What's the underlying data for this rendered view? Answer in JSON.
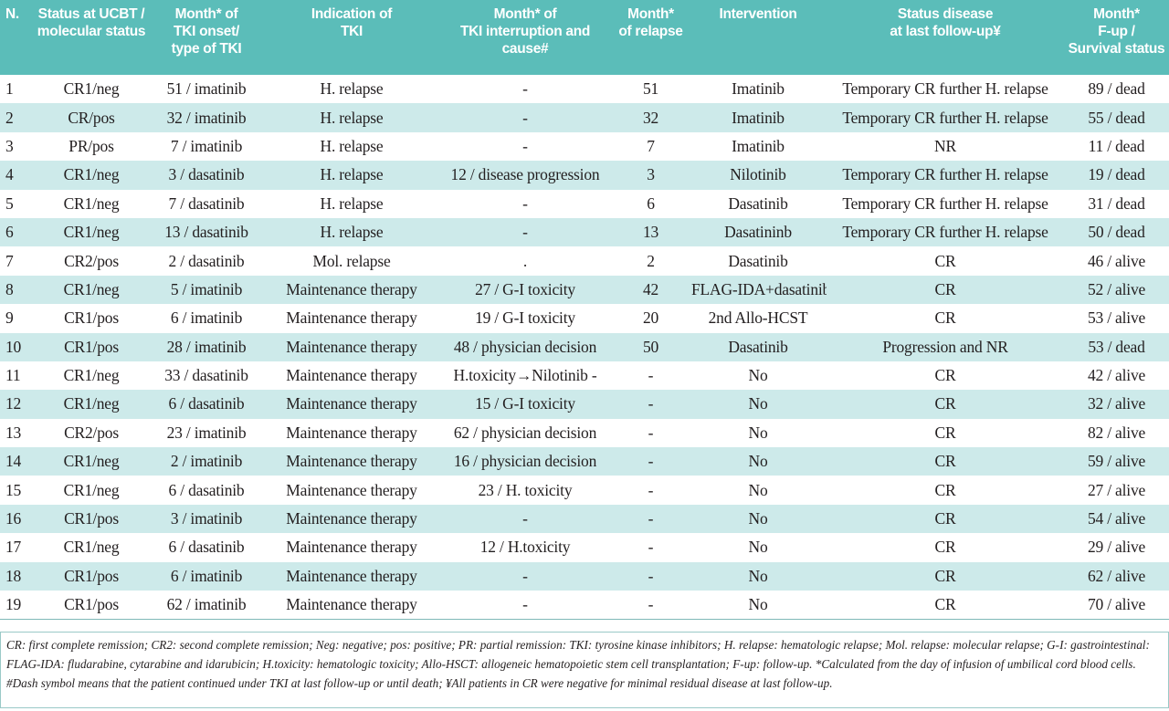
{
  "table": {
    "header": [
      [
        "N."
      ],
      [
        "Status at UCBT /",
        "molecular status"
      ],
      [
        "Month* of",
        "TKI onset/",
        "type of TKI"
      ],
      [
        "Indication of",
        "TKI"
      ],
      [
        "Month* of",
        "TKI interruption and",
        "cause#"
      ],
      [
        "Month*",
        "of relapse"
      ],
      [
        "Intervention"
      ],
      [
        "Status disease",
        "at last follow-up¥"
      ],
      [
        "Month*",
        "F-up /",
        "Survival status"
      ]
    ],
    "rows": [
      [
        "1",
        "CR1/neg",
        "51 / imatinib",
        "H. relapse",
        "-",
        "51",
        "Imatinib",
        "Temporary CR further H. relapse",
        "89 / dead"
      ],
      [
        "2",
        "CR/pos",
        "32 / imatinib",
        "H. relapse",
        "-",
        "32",
        "Imatinib",
        "Temporary CR further H. relapse",
        "55 / dead"
      ],
      [
        "3",
        "PR/pos",
        "7 / imatinib",
        "H. relapse",
        "-",
        "7",
        "Imatinib",
        "NR",
        "11 / dead"
      ],
      [
        "4",
        "CR1/neg",
        "3 / dasatinib",
        "H. relapse",
        "12 / disease progression",
        "3",
        "Nilotinib",
        "Temporary CR further H. relapse",
        "19 / dead"
      ],
      [
        "5",
        "CR1/neg",
        "7 / dasatinib",
        "H. relapse",
        "-",
        "6",
        "Dasatinib",
        "Temporary CR further H. relapse",
        "31 / dead"
      ],
      [
        "6",
        "CR1/neg",
        "13 / dasatinib",
        "H. relapse",
        "-",
        "13",
        "Dasatininb",
        "Temporary CR further H. relapse",
        "50 / dead"
      ],
      [
        "7",
        "CR2/pos",
        "2 / dasatinib",
        "Mol. relapse",
        ".",
        "2",
        "Dasatinib",
        "CR",
        "46 / alive"
      ],
      [
        "8",
        "CR1/neg",
        "5 / imatinib",
        "Maintenance therapy",
        "27 / G-I toxicity",
        "42",
        "FLAG-IDA+dasatinib",
        "CR",
        "52 / alive"
      ],
      [
        "9",
        "CR1/pos",
        "6 / imatinib",
        "Maintenance therapy",
        "19 / G-I toxicity",
        "20",
        "2nd Allo-HCST",
        "CR",
        "53 / alive"
      ],
      [
        "10",
        "CR1/pos",
        "28 / imatinib",
        "Maintenance therapy",
        "48 / physician decision",
        "50",
        "Dasatinib",
        "Progression and NR",
        "53 / dead"
      ],
      [
        "11",
        "CR1/neg",
        "33 / dasatinib",
        "Maintenance therapy",
        "H.toxicity→Nilotinib -",
        "-",
        "No",
        "CR",
        "42 / alive"
      ],
      [
        "12",
        "CR1/neg",
        "6 / dasatinib",
        "Maintenance therapy",
        "15 / G-I toxicity",
        "-",
        "No",
        "CR",
        "32 / alive"
      ],
      [
        "13",
        "CR2/pos",
        "23 / imatinib",
        "Maintenance therapy",
        "62 / physician decision",
        "-",
        "No",
        "CR",
        "82 / alive"
      ],
      [
        "14",
        "CR1/neg",
        "2 / imatinib",
        "Maintenance therapy",
        "16 / physician decision",
        "-",
        "No",
        "CR",
        "59 / alive"
      ],
      [
        "15",
        "CR1/neg",
        "6 / dasatinib",
        "Maintenance therapy",
        "23 / H. toxicity",
        "-",
        "No",
        "CR",
        "27 / alive"
      ],
      [
        "16",
        "CR1/pos",
        "3 / imatinib",
        "Maintenance therapy",
        "-",
        "-",
        "No",
        "CR",
        "54 / alive"
      ],
      [
        "17",
        "CR1/neg",
        "6 / dasatinib",
        "Maintenance therapy",
        "12 / H.toxicity",
        "-",
        "No",
        "CR",
        "29 / alive"
      ],
      [
        "18",
        "CR1/pos",
        "6 / imatinib",
        "Maintenance therapy",
        "-",
        "-",
        "No",
        "CR",
        "62 / alive"
      ],
      [
        "19",
        "CR1/pos",
        "62 / imatinib",
        "Maintenance therapy",
        "-",
        "-",
        "No",
        "CR",
        "70 / alive"
      ]
    ],
    "footnote": "CR: first complete remission; CR2: second complete remission; Neg: negative; pos: positive; PR: partial remission: TKI: tyrosine kinase inhibitors; H. relapse: hematologic relapse; Mol. relapse: molecular relapse; G-I: gastrointestinal: FLAG-IDA: fludarabine, cytarabine and idarubicin; H.toxicity: hematologic toxicity; Allo-HSCT: allogeneic hematopoietic stem cell transplantation; F-up: follow-up. *Calculated from the day of infusion of umbilical cord blood cells. #Dash symbol means that the patient continued under TKI at last follow-up or until death; ¥All patients in CR were negative for minimal residual disease at last follow-up."
  }
}
